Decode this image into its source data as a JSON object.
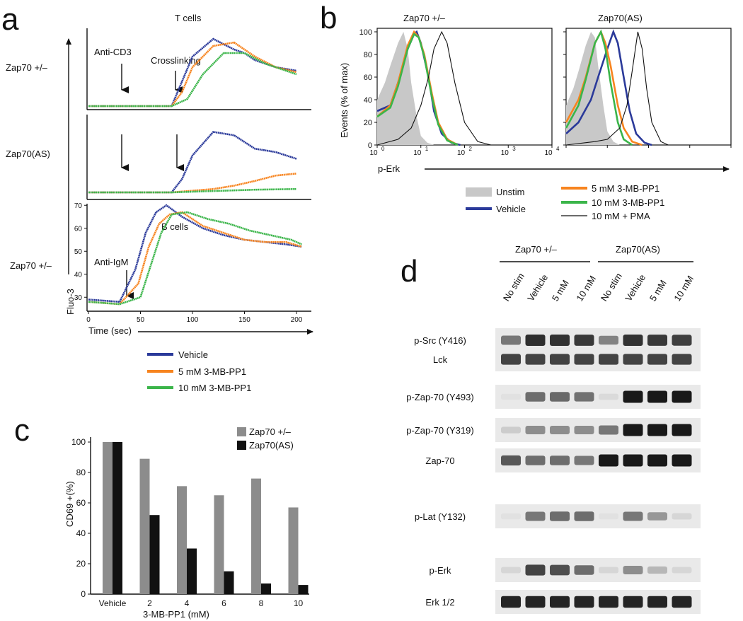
{
  "panels": {
    "a": "a",
    "b": "b",
    "c": "c",
    "d": "d"
  },
  "colors": {
    "vehicle": "#2b3a9a",
    "mm5": "#f7841f",
    "mm10": "#3bb54a",
    "pma": "#111111",
    "unstim": "#c8c8c8",
    "gray_bar": "#8c8c8c",
    "black_bar": "#111111"
  },
  "panel_a": {
    "row_labels": [
      "Zap70 +/–",
      "Zap70(AS)",
      "Zap70 +/–"
    ],
    "t_cells_title": "T cells",
    "b_cells_title": "B cells",
    "anti_cd3": "Anti-CD3",
    "crosslinking": "Crosslinking",
    "anti_igm": "Anti-IgM",
    "y_axis": "Fluo-3",
    "x_axis": "Time (sec)",
    "y_ticks": [
      "30",
      "40",
      "50",
      "60",
      "70"
    ],
    "x_ticks": [
      "0",
      "50",
      "100",
      "150",
      "200"
    ],
    "legend": [
      "Vehicle",
      "5 mM 3-MB-PP1",
      "10 mM 3-MB-PP1"
    ]
  },
  "panel_b": {
    "left_title": "Zap70 +/–",
    "right_title": "Zap70(AS)",
    "y_axis": "Events (% of max)",
    "x_axis": "p-Erk",
    "y_ticks": [
      "0",
      "20",
      "40",
      "60",
      "80",
      "100"
    ],
    "x_ticks": [
      "10",
      "10",
      "10",
      "10",
      "10"
    ],
    "x_exps": [
      "0",
      "1",
      "2",
      "3",
      "4"
    ],
    "legend": [
      "Unstim",
      "Vehicle",
      "5 mM 3-MB-PP1",
      "10 mM 3-MB-PP1",
      "10 mM + PMA"
    ]
  },
  "panel_d": {
    "group_left": "Zap70 +/–",
    "group_right": "Zap70(AS)",
    "lanes": [
      "No stim",
      "Vehicle",
      "5 mM",
      "10 mM",
      "No stim",
      "Vehicle",
      "5 mM",
      "10 mM"
    ],
    "blots": [
      {
        "label": "p-Src (Y416)",
        "intensity": [
          0.55,
          0.9,
          0.88,
          0.85,
          0.5,
          0.88,
          0.85,
          0.82
        ]
      },
      {
        "label": "Lck",
        "intensity": [
          0.8,
          0.8,
          0.8,
          0.8,
          0.8,
          0.8,
          0.8,
          0.8
        ]
      },
      {
        "label": "p-Zap-70 (Y493)",
        "intensity": [
          0.05,
          0.6,
          0.62,
          0.58,
          0.08,
          1.0,
          1.0,
          1.0
        ]
      },
      {
        "label": "p-Zap-70 (Y319)",
        "intensity": [
          0.15,
          0.45,
          0.45,
          0.45,
          0.55,
          1.0,
          1.0,
          1.0
        ]
      },
      {
        "label": "Zap-70",
        "intensity": [
          0.7,
          0.6,
          0.6,
          0.55,
          1.0,
          1.0,
          1.0,
          1.0
        ]
      },
      {
        "label": "p-Lat (Y132)",
        "intensity": [
          0.05,
          0.55,
          0.6,
          0.6,
          0.05,
          0.55,
          0.4,
          0.1
        ]
      },
      {
        "label": "p-Erk",
        "intensity": [
          0.1,
          0.8,
          0.75,
          0.6,
          0.1,
          0.45,
          0.25,
          0.1
        ]
      },
      {
        "label": "Erk 1/2",
        "intensity": [
          0.95,
          0.95,
          0.95,
          0.95,
          0.95,
          0.95,
          0.95,
          0.95
        ]
      }
    ]
  },
  "chart_data": [
    {
      "type": "line",
      "title": "T cells",
      "row": "Zap70 +/–",
      "xlabel": "Time (sec)",
      "ylabel": "Fluo-3",
      "series": [
        {
          "name": "Vehicle",
          "x": [
            0,
            20,
            30,
            40,
            80,
            90,
            100,
            120,
            140,
            150,
            160,
            180,
            200
          ],
          "values": [
            0,
            0,
            0,
            0,
            0,
            0.35,
            0.7,
            0.95,
            0.8,
            0.75,
            0.65,
            0.55,
            0.5
          ]
        },
        {
          "name": "5 mM 3-MB-PP1",
          "x": [
            0,
            20,
            30,
            40,
            80,
            90,
            100,
            120,
            140,
            160,
            180,
            200
          ],
          "values": [
            0,
            0,
            0,
            0,
            0,
            0.2,
            0.55,
            0.85,
            0.9,
            0.7,
            0.55,
            0.48
          ]
        },
        {
          "name": "10 mM 3-MB-PP1",
          "x": [
            0,
            20,
            30,
            40,
            80,
            95,
            110,
            130,
            150,
            170,
            190,
            200
          ],
          "values": [
            0,
            0,
            0,
            0,
            0,
            0.1,
            0.45,
            0.75,
            0.75,
            0.6,
            0.5,
            0.45
          ]
        }
      ]
    },
    {
      "type": "line",
      "title": "",
      "row": "Zap70(AS)",
      "xlabel": "Time (sec)",
      "ylabel": "Fluo-3",
      "series": [
        {
          "name": "Vehicle",
          "x": [
            0,
            20,
            30,
            40,
            80,
            90,
            100,
            120,
            140,
            160,
            180,
            200
          ],
          "values": [
            0,
            0,
            0,
            0,
            0,
            0.2,
            0.55,
            0.9,
            0.85,
            0.65,
            0.6,
            0.5
          ]
        },
        {
          "name": "5 mM 3-MB-PP1",
          "x": [
            0,
            40,
            80,
            120,
            140,
            160,
            180,
            200
          ],
          "values": [
            0,
            0,
            0,
            0.05,
            0.1,
            0.17,
            0.25,
            0.28
          ]
        },
        {
          "name": "10 mM 3-MB-PP1",
          "x": [
            0,
            40,
            80,
            120,
            160,
            200
          ],
          "values": [
            0,
            0,
            0,
            0.02,
            0.04,
            0.05
          ]
        }
      ]
    },
    {
      "type": "line",
      "title": "B cells",
      "row": "Zap70 +/–",
      "xlabel": "Time (sec)",
      "ylabel": "Fluo-3",
      "ylim": [
        25,
        72
      ],
      "xlim": [
        0,
        210
      ],
      "series": [
        {
          "name": "Vehicle",
          "x": [
            0,
            30,
            45,
            55,
            65,
            75,
            90,
            110,
            130,
            150,
            170,
            190,
            205
          ],
          "values": [
            29,
            28,
            42,
            58,
            67,
            70,
            65,
            60,
            57,
            55,
            54,
            53,
            52
          ]
        },
        {
          "name": "5 mM 3-MB-PP1",
          "x": [
            0,
            30,
            48,
            58,
            68,
            78,
            90,
            110,
            130,
            150,
            170,
            190,
            205
          ],
          "values": [
            28,
            27,
            36,
            52,
            62,
            66,
            67,
            61,
            58,
            55,
            54,
            54,
            52
          ]
        },
        {
          "name": "10 mM 3-MB-PP1",
          "x": [
            0,
            30,
            50,
            60,
            70,
            80,
            95,
            115,
            135,
            155,
            175,
            195,
            205
          ],
          "values": [
            28,
            27,
            30,
            44,
            58,
            66,
            67,
            64,
            62,
            59,
            57,
            55,
            53
          ]
        }
      ]
    },
    {
      "type": "area",
      "title": "Zap70 +/–",
      "xlabel": "p-Erk",
      "ylabel": "Events (% of max)",
      "x_scale": "log",
      "xlim": [
        1,
        10000
      ],
      "ylim": [
        0,
        100
      ],
      "series": [
        {
          "name": "Unstim",
          "x": [
            1,
            1.5,
            2,
            3,
            4,
            5,
            6,
            8,
            10,
            14,
            20
          ],
          "values": [
            40,
            55,
            70,
            90,
            100,
            85,
            55,
            25,
            8,
            2,
            0
          ]
        },
        {
          "name": "Vehicle",
          "x": [
            1,
            2,
            3,
            5,
            7,
            8,
            10,
            15,
            20,
            30,
            50,
            80
          ],
          "values": [
            30,
            35,
            55,
            85,
            98,
            100,
            90,
            60,
            30,
            10,
            2,
            0
          ]
        },
        {
          "name": "5 mM 3-MB-PP1",
          "x": [
            1,
            2,
            3,
            5,
            7,
            9,
            12,
            18,
            25,
            40,
            70
          ],
          "values": [
            25,
            35,
            55,
            88,
            100,
            95,
            80,
            45,
            20,
            5,
            0
          ]
        },
        {
          "name": "10 mM 3-MB-PP1",
          "x": [
            1,
            2,
            3,
            5,
            7,
            9,
            12,
            18,
            25,
            40,
            70
          ],
          "values": [
            25,
            33,
            52,
            85,
            98,
            95,
            78,
            42,
            18,
            4,
            0
          ]
        },
        {
          "name": "10 mM + PMA",
          "x": [
            1,
            3,
            6,
            10,
            15,
            20,
            30,
            40,
            60,
            100,
            200,
            400
          ],
          "values": [
            0,
            5,
            15,
            35,
            60,
            85,
            100,
            90,
            55,
            20,
            3,
            0
          ]
        }
      ]
    },
    {
      "type": "area",
      "title": "Zap70(AS)",
      "xlabel": "p-Erk",
      "ylabel": "Events (% of max)",
      "x_scale": "log",
      "xlim": [
        1,
        10000
      ],
      "ylim": [
        0,
        100
      ],
      "series": [
        {
          "name": "Unstim",
          "x": [
            1,
            1.5,
            2,
            3,
            4,
            5,
            6,
            8,
            10,
            14,
            20
          ],
          "values": [
            35,
            50,
            65,
            88,
            100,
            95,
            70,
            35,
            12,
            3,
            0
          ]
        },
        {
          "name": "Vehicle",
          "x": [
            1,
            2,
            4,
            6,
            10,
            14,
            18,
            25,
            35,
            50,
            80,
            120
          ],
          "values": [
            10,
            20,
            40,
            60,
            85,
            100,
            90,
            60,
            30,
            10,
            2,
            0
          ]
        },
        {
          "name": "5 mM 3-MB-PP1",
          "x": [
            1,
            2,
            3,
            5,
            7,
            9,
            12,
            18,
            25,
            40,
            70
          ],
          "values": [
            20,
            40,
            60,
            90,
            100,
            90,
            70,
            35,
            15,
            3,
            0
          ]
        },
        {
          "name": "10 mM 3-MB-PP1",
          "x": [
            1,
            2,
            3,
            5,
            7,
            9,
            12,
            18,
            25,
            40
          ],
          "values": [
            15,
            35,
            58,
            90,
            100,
            85,
            55,
            20,
            5,
            0
          ]
        },
        {
          "name": "10 mM + PMA",
          "x": [
            1,
            5,
            10,
            20,
            30,
            40,
            55,
            70,
            90,
            120,
            200,
            300
          ],
          "values": [
            0,
            3,
            5,
            15,
            35,
            65,
            100,
            85,
            50,
            20,
            3,
            0
          ]
        }
      ]
    },
    {
      "type": "bar",
      "title": "",
      "xlabel": "3-MB-PP1 (mM)",
      "ylabel": "CD69 +(%)",
      "ylim": [
        0,
        100
      ],
      "categories": [
        "Vehicle",
        "2",
        "4",
        "6",
        "8",
        "10"
      ],
      "yticks": [
        "0",
        "20",
        "40",
        "60",
        "80",
        "100"
      ],
      "series": [
        {
          "name": "Zap70 +/–",
          "values": [
            100,
            89,
            71,
            65,
            76,
            57
          ]
        },
        {
          "name": "Zap70(AS)",
          "values": [
            100,
            52,
            30,
            15,
            7,
            6
          ]
        }
      ]
    }
  ]
}
